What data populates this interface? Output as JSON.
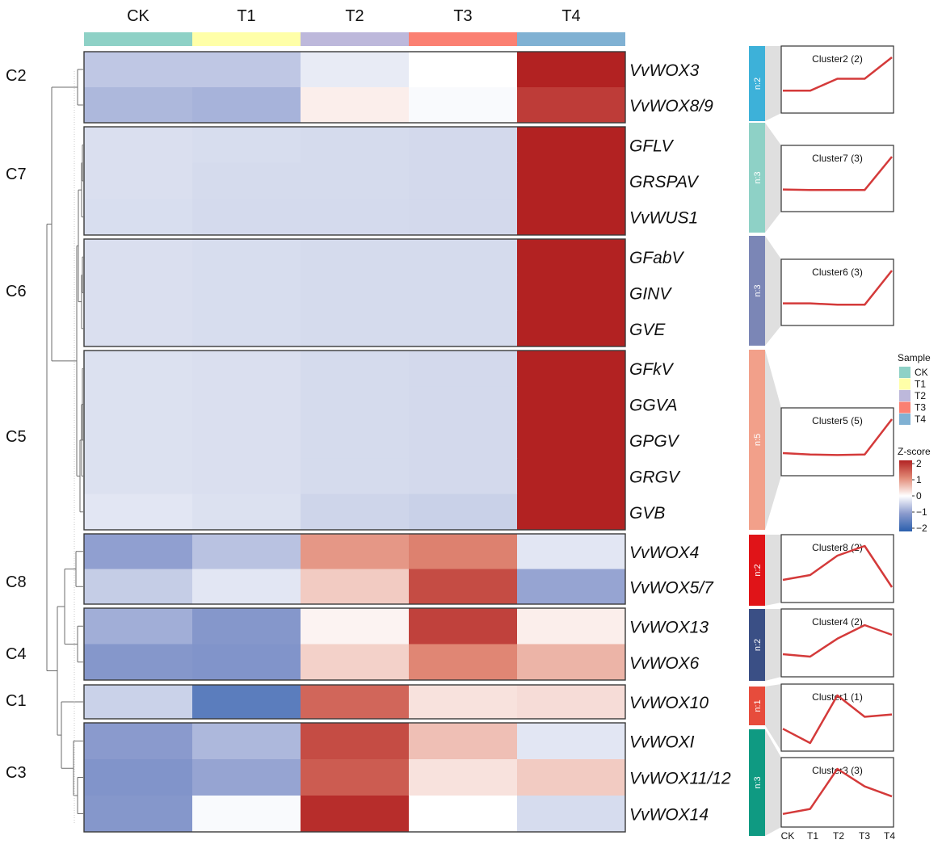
{
  "chart_data": {
    "type": "heatmap",
    "columns": [
      "CK",
      "T1",
      "T2",
      "T3",
      "T4"
    ],
    "column_colors": [
      "#8ed1c6",
      "#ffffa8",
      "#bdb8db",
      "#fb8072",
      "#80b1d3"
    ],
    "clusters": [
      {
        "id": "C2",
        "n_label": "n:2",
        "bar_color": "#3db1d9",
        "profile_title": "Cluster2 (2)",
        "profile": [
          0.3,
          0.3,
          0.55,
          0.55,
          1.0
        ]
      },
      {
        "id": "C7",
        "n_label": "n:3",
        "bar_color": "#8ed1c6",
        "profile_title": "Cluster7 (3)",
        "profile": [
          0.3,
          0.29,
          0.29,
          0.29,
          1.0
        ]
      },
      {
        "id": "C6",
        "n_label": "n:3",
        "bar_color": "#7b86b6",
        "profile_title": "Cluster6 (3)",
        "profile": [
          0.3,
          0.3,
          0.27,
          0.27,
          1.0
        ]
      },
      {
        "id": "C5",
        "n_label": "n:5",
        "bar_color": "#f2a08a",
        "profile_title": "Cluster5 (5)",
        "profile": [
          0.3,
          0.27,
          0.26,
          0.27,
          1.0
        ]
      },
      {
        "id": "C8",
        "n_label": "n:2",
        "bar_color": "#e01418",
        "profile_title": "Cluster8 (2)",
        "profile": [
          0.3,
          0.4,
          0.8,
          1.0,
          0.15
        ]
      },
      {
        "id": "C4",
        "n_label": "n:2",
        "bar_color": "#3a4f85",
        "profile_title": "Cluster4 (2)",
        "profile": [
          0.3,
          0.25,
          0.62,
          0.9,
          0.7
        ]
      },
      {
        "id": "C1",
        "n_label": "n:1",
        "bar_color": "#e74c3c",
        "profile_title": "Cluster1 (1)",
        "profile": [
          0.3,
          0.0,
          1.0,
          0.55,
          0.6
        ]
      },
      {
        "id": "C3",
        "n_label": "n:3",
        "bar_color": "#0f9a82",
        "profile_title": "Cluster3 (3)",
        "profile": [
          0.1,
          0.2,
          1.0,
          0.65,
          0.45
        ]
      }
    ],
    "rows": [
      {
        "gene": "VvWOX3",
        "cluster": "C2",
        "z": [
          -0.55,
          -0.55,
          -0.2,
          0.0,
          2.0
        ]
      },
      {
        "gene": "VvWOX8/9",
        "cluster": "C2",
        "z": [
          -0.7,
          -0.75,
          0.15,
          -0.05,
          1.75
        ]
      },
      {
        "gene": "GFLV",
        "cluster": "C7",
        "z": [
          -0.32,
          -0.34,
          -0.36,
          -0.38,
          2.2
        ]
      },
      {
        "gene": "GRSPAV",
        "cluster": "C7",
        "z": [
          -0.32,
          -0.36,
          -0.36,
          -0.38,
          2.2
        ]
      },
      {
        "gene": "VvWUS1",
        "cluster": "C7",
        "z": [
          -0.33,
          -0.37,
          -0.37,
          -0.38,
          2.2
        ]
      },
      {
        "gene": "GFabV",
        "cluster": "C6",
        "z": [
          -0.32,
          -0.34,
          -0.36,
          -0.36,
          2.2
        ]
      },
      {
        "gene": "GINV",
        "cluster": "C6",
        "z": [
          -0.32,
          -0.34,
          -0.36,
          -0.36,
          2.2
        ]
      },
      {
        "gene": "GVE",
        "cluster": "C6",
        "z": [
          -0.32,
          -0.34,
          -0.36,
          -0.36,
          2.2
        ]
      },
      {
        "gene": "GFkV",
        "cluster": "C5",
        "z": [
          -0.3,
          -0.32,
          -0.36,
          -0.38,
          2.2
        ]
      },
      {
        "gene": "GGVA",
        "cluster": "C5",
        "z": [
          -0.3,
          -0.32,
          -0.36,
          -0.38,
          2.2
        ]
      },
      {
        "gene": "GPGV",
        "cluster": "C5",
        "z": [
          -0.3,
          -0.32,
          -0.36,
          -0.38,
          2.2
        ]
      },
      {
        "gene": "GRGV",
        "cluster": "C5",
        "z": [
          -0.3,
          -0.32,
          -0.36,
          -0.38,
          2.2
        ]
      },
      {
        "gene": "GVB",
        "cluster": "C5",
        "z": [
          -0.25,
          -0.3,
          -0.42,
          -0.46,
          2.2
        ]
      },
      {
        "gene": "VvWOX4",
        "cluster": "C8",
        "z": [
          -0.95,
          -0.6,
          0.9,
          1.1,
          -0.25
        ]
      },
      {
        "gene": "VvWOX5/7",
        "cluster": "C8",
        "z": [
          -0.5,
          -0.25,
          0.45,
          1.6,
          -0.9
        ]
      },
      {
        "gene": "VvWOX13",
        "cluster": "C4",
        "z": [
          -0.8,
          -1.05,
          0.1,
          1.7,
          0.15
        ]
      },
      {
        "gene": "VvWOX6",
        "cluster": "C4",
        "z": [
          -1.05,
          -1.1,
          0.4,
          1.05,
          0.65
        ]
      },
      {
        "gene": "VvWOX10",
        "cluster": "C1",
        "z": [
          -0.45,
          -1.5,
          1.35,
          0.25,
          0.3
        ]
      },
      {
        "gene": "VvWOXI",
        "cluster": "C3",
        "z": [
          -1.0,
          -0.7,
          1.6,
          0.55,
          -0.25
        ]
      },
      {
        "gene": "VvWOX11/12",
        "cluster": "C3",
        "z": [
          -1.1,
          -0.9,
          1.45,
          0.25,
          0.45
        ]
      },
      {
        "gene": "VvWOX14",
        "cluster": "C3",
        "z": [
          -1.05,
          -0.05,
          1.9,
          0.0,
          -0.35
        ]
      }
    ],
    "profile_x_labels": [
      "CK",
      "T1",
      "T2",
      "T3",
      "T4"
    ],
    "legend": {
      "sample_title": "Sample",
      "sample_items": [
        "CK",
        "T1",
        "T2",
        "T3",
        "T4"
      ],
      "zscore_title": "Z-score",
      "zscore_ticks": [
        "2",
        "1",
        "0",
        "−1",
        "−2"
      ],
      "zscore_range": [
        -2,
        2
      ],
      "colorscale": [
        "#2b5fad",
        "#8a9acd",
        "#ffffff",
        "#e28b78",
        "#b22222"
      ]
    }
  }
}
